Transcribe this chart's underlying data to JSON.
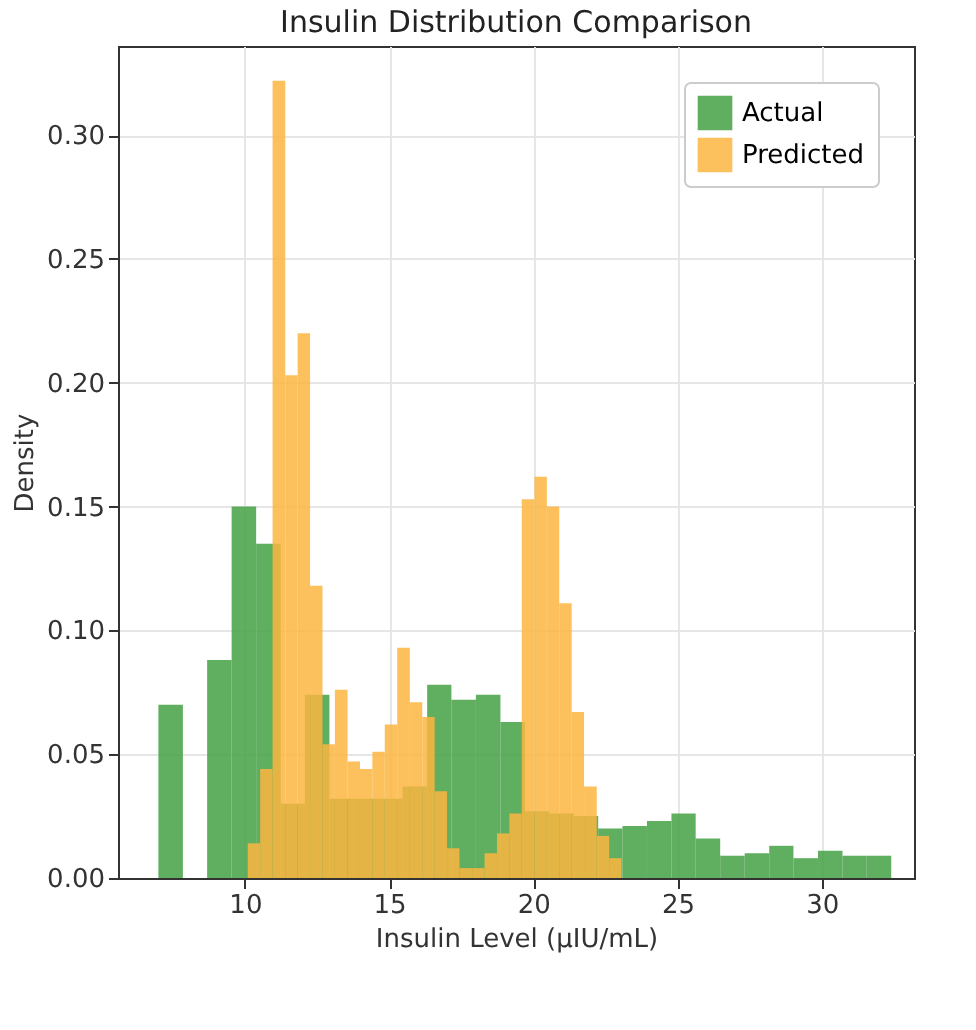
{
  "chart_data": {
    "type": "histogram",
    "title": "Insulin Distribution Comparison",
    "xlabel": "Insulin Level (µIU/mL)",
    "ylabel": "Density",
    "xlim": [
      5.6,
      33.2
    ],
    "xticks": [
      10,
      15,
      20,
      25,
      30
    ],
    "ylim": [
      0,
      0.336
    ],
    "yticks": [
      {
        "value": 0,
        "label": "0.00"
      },
      {
        "value": 0.05,
        "label": "0.05"
      },
      {
        "value": 0.1,
        "label": "0.10"
      },
      {
        "value": 0.15,
        "label": "0.15"
      },
      {
        "value": 0.2,
        "label": "0.20"
      },
      {
        "value": 0.25,
        "label": "0.25"
      },
      {
        "value": 0.3,
        "label": "0.30"
      }
    ],
    "grid": true,
    "legend": "top right",
    "bins": [
      7.0,
      7.85,
      8.69,
      9.54,
      10.39,
      11.24,
      12.08,
      12.93,
      13.78,
      14.62,
      15.47,
      16.32,
      17.16,
      18.01,
      18.86,
      19.71,
      20.55,
      21.4,
      22.25,
      23.09,
      23.94,
      24.79,
      25.63,
      26.48,
      27.33,
      28.18,
      29.02,
      29.87,
      30.72,
      31.56,
      32.41
    ],
    "series": [
      {
        "name": "Actual",
        "color": "#44a044",
        "values": [
          0.07,
          0,
          0.088,
          0.15,
          0.135,
          0.03,
          0.074,
          0.032,
          0.032,
          0.032,
          0.037,
          0.078,
          0.072,
          0.074,
          0.063,
          0.027,
          0.026,
          0.025,
          0.02,
          0.021,
          0.023,
          0.026,
          0.016,
          0.009,
          0.01,
          0.013,
          0.008,
          0.011,
          0.009,
          0.009
        ]
      },
      {
        "name": "Predicted",
        "color": "#fbb540",
        "bins": [
          10.1,
          10.53,
          10.96,
          11.4,
          11.83,
          12.26,
          12.69,
          13.12,
          13.56,
          13.99,
          14.42,
          14.85,
          15.28,
          15.72,
          16.15,
          16.58,
          17.01,
          17.44,
          17.88,
          18.31,
          18.74,
          19.17,
          19.6,
          20.04,
          20.47,
          20.9,
          21.33,
          21.76,
          22.2,
          22.63,
          23.06
        ],
        "values": [
          0.014,
          0.044,
          0.322,
          0.203,
          0.22,
          0.118,
          0.054,
          0.076,
          0.047,
          0.044,
          0.051,
          0.062,
          0.093,
          0.071,
          0.065,
          0.035,
          0.012,
          0.004,
          0.004,
          0.01,
          0.018,
          0.026,
          0.153,
          0.162,
          0.15,
          0.111,
          0.067,
          0.037,
          0.017,
          0.008
        ]
      }
    ]
  }
}
